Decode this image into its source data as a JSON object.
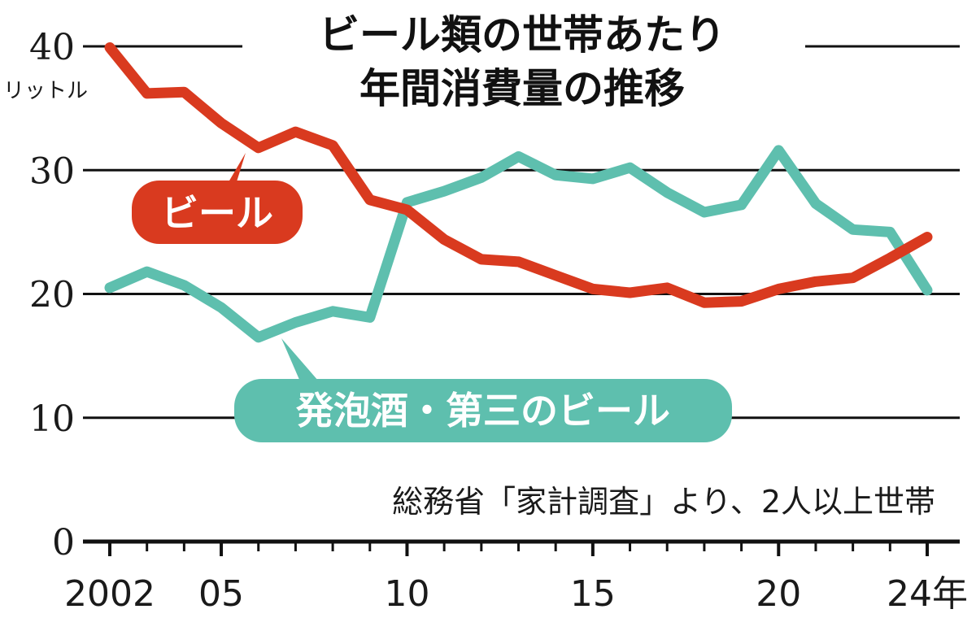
{
  "chart_data": {
    "type": "line",
    "title_lines": [
      "ビール類の世帯あたり",
      "年間消費量の推移"
    ],
    "unit": "リットル",
    "source": "総務省「家計調査」より、2人以上世帯",
    "ylim": [
      0,
      40
    ],
    "yticks": [
      "0",
      "10",
      "20",
      "30",
      "40"
    ],
    "xlim": [
      2002,
      2024
    ],
    "xtick_labels": [
      {
        "x": 2002,
        "label": "2002"
      },
      {
        "x": 2005,
        "label": "05"
      },
      {
        "x": 2010,
        "label": "10"
      },
      {
        "x": 2015,
        "label": "15"
      },
      {
        "x": 2020,
        "label": "20"
      },
      {
        "x": 2024,
        "label": "24年"
      }
    ],
    "grid": true,
    "x": [
      2002,
      2003,
      2004,
      2005,
      2006,
      2007,
      2008,
      2009,
      2010,
      2011,
      2012,
      2013,
      2014,
      2015,
      2016,
      2017,
      2018,
      2019,
      2020,
      2021,
      2022,
      2023,
      2024
    ],
    "series": [
      {
        "name": "ビール",
        "color": "#d93a1f",
        "values": [
          39.9,
          36.2,
          36.3,
          33.8,
          31.8,
          33.1,
          32.0,
          27.6,
          26.8,
          24.4,
          22.8,
          22.6,
          21.5,
          20.4,
          20.1,
          20.5,
          19.3,
          19.4,
          20.4,
          21.0,
          21.3,
          22.9,
          24.6
        ]
      },
      {
        "name": "発泡酒・第三のビール",
        "color": "#5ebfae",
        "values": [
          20.5,
          21.8,
          20.7,
          18.9,
          16.5,
          17.7,
          18.6,
          18.1,
          27.4,
          28.3,
          29.4,
          31.1,
          29.6,
          29.3,
          30.2,
          28.2,
          26.6,
          27.2,
          31.6,
          27.3,
          25.2,
          25.0,
          20.3
        ]
      }
    ]
  }
}
